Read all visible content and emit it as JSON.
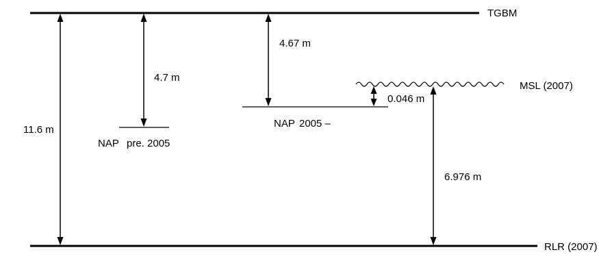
{
  "levels": {
    "tgbm": "TGBM",
    "rlr": "RLR (2007)",
    "msl": "MSL (2007)",
    "nap_pre": {
      "word": "NAP",
      "qualifier": "pre. 2005"
    },
    "nap_post": {
      "word": "NAP",
      "qualifier": "2005 –"
    }
  },
  "measurements": {
    "tgbm_to_rlr": "11.6 m",
    "tgbm_to_nap_pre": "4.7 m",
    "tgbm_to_nap_post": "4.67 m",
    "nap_post_to_msl": "0.046 m",
    "msl_to_rlr": "6.976 m"
  }
}
